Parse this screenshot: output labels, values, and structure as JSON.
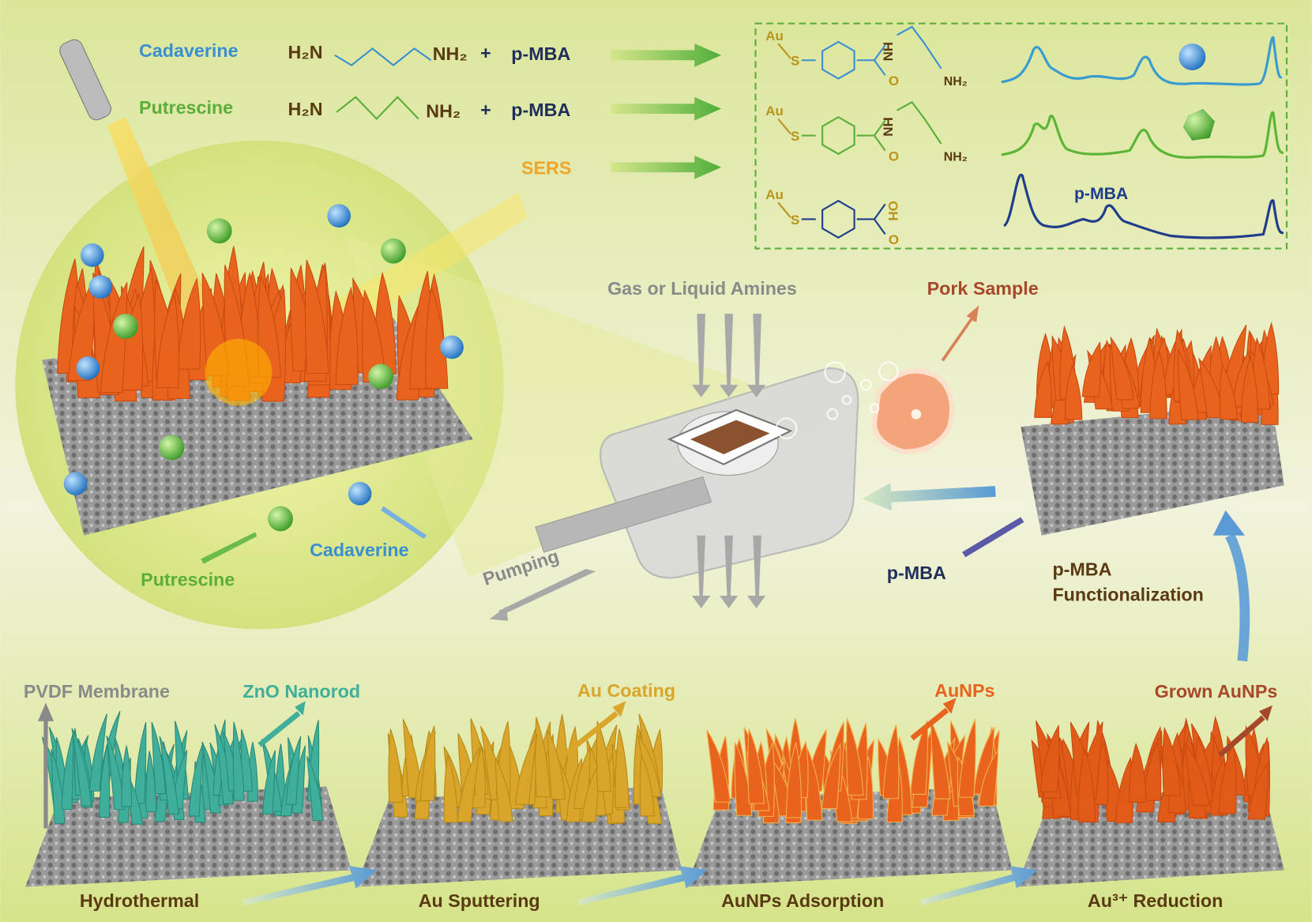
{
  "reactions": [
    {
      "name": "Cadaverine",
      "left": "H₂N",
      "right": "NH₂",
      "plus": "+",
      "reagent": "p-MBA"
    },
    {
      "name": "Putrescine",
      "left": "H₂N",
      "right": "NH₂",
      "plus": "+",
      "reagent": "p-MBA"
    }
  ],
  "sers": "SERS",
  "products": [
    {
      "metal": "Au",
      "linker": "S",
      "amide": "HN",
      "carbonyl": "O",
      "amine": "NH₂"
    },
    {
      "metal": "Au",
      "linker": "S",
      "amide": "HN",
      "carbonyl": "O",
      "amine": "NH₂"
    },
    {
      "metal": "Au",
      "linker": "S",
      "hydroxyl": "OH",
      "carbonyl": "O"
    }
  ],
  "spectrum_label": "p-MBA",
  "device": {
    "inlet": "Gas or Liquid Amines",
    "sample": "Pork Sample",
    "pumping": "Pumping",
    "probe": "p-MBA",
    "functionalization": [
      "p-MBA",
      "Functionalization"
    ]
  },
  "zoom": {
    "cadaverine": "Cadaverine",
    "putrescine": "Putrescine"
  },
  "materials": [
    "PVDF Membrane",
    "ZnO Nanorod",
    "Au Coating",
    "AuNPs",
    "Grown AuNPs"
  ],
  "steps": [
    "Hydrothermal",
    "Au Sputtering",
    "AuNPs Adsorption",
    "Au³⁺ Reduction"
  ]
}
